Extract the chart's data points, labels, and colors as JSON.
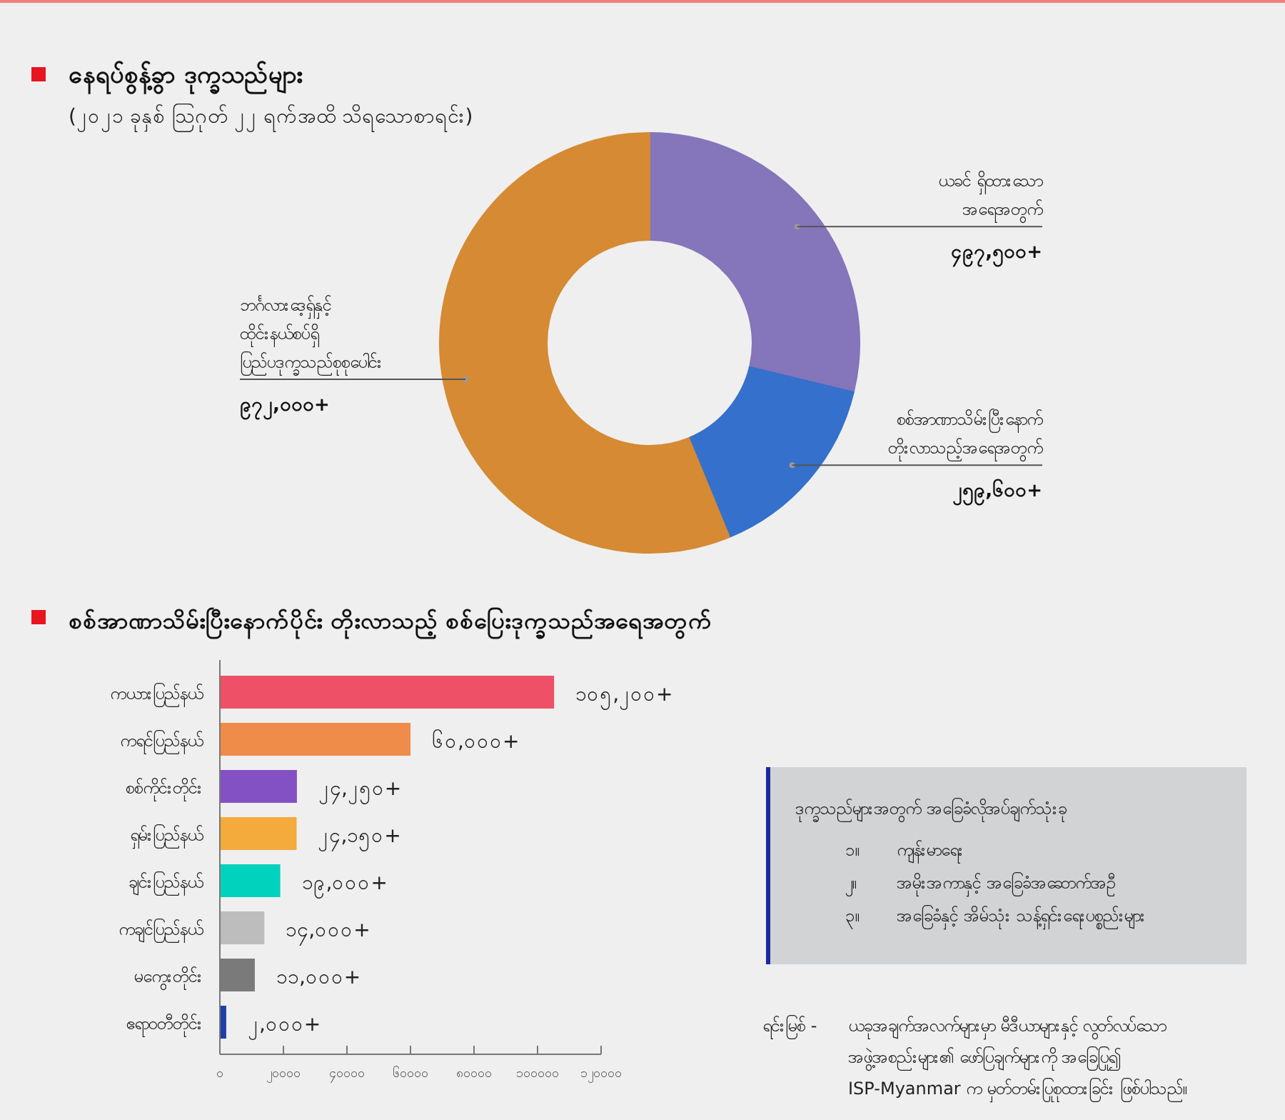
{
  "chart_data": [
    {
      "type": "donut",
      "title": "နေရပ်စွန့်ခွာ ဒုက္ခသည်များ",
      "subtitle": "(၂၀၂၁ ခုနှစ် ဩဂုတ် ၂၂ ရက်အထိ သိရသောစာရင်း)",
      "categories": [
        "ယခင် ရှိထားသော\nအရေအတွက်",
        "စစ်အာဏာသိမ်းပြီးနောက်\nတိုးလာသည့်အရေအတွက်",
        "ဘင်္ဂလားဒေ့ရှ်နှင့်\nထိုင်းနယ်စပ်ရှိ\nပြည်ပဒုက္ခသည်စုစုပေါင်း"
      ],
      "values": [
        497500,
        259600,
        972000
      ],
      "colors": [
        "#8575ba",
        "#3570cc",
        "#d68a33"
      ],
      "value_labels": [
        "၄၉၇,၅၀၀+",
        "၂၅၉,၆၀၀+",
        "၉၇၂,၀၀၀+"
      ]
    },
    {
      "type": "bar",
      "orientation": "horizontal",
      "title": "စစ်အာဏာသိမ်းပြီးနောက်ပိုင်း တိုးလာသည့် စစ်ပြေးဒုက္ခသည်အရေအတွက်",
      "categories": [
        "ကယားပြည်နယ်",
        "ကရင်ပြည်နယ်",
        "စစ်ကိုင်းတိုင်း",
        "ရှမ်းပြည်နယ်",
        "ချင်းပြည်နယ်",
        "ကချင်ပြည်နယ်",
        "မကွေးတိုင်း",
        "ဧရာဝတီတိုင်း"
      ],
      "values": [
        105200,
        60000,
        24250,
        24150,
        19000,
        14000,
        11000,
        2000
      ],
      "colors": [
        "#ee5068",
        "#ef8c4a",
        "#8351c4",
        "#f5aa3c",
        "#00d2bd",
        "#bdbdbd",
        "#7a7a7a",
        "#1f3fa8"
      ],
      "value_labels": [
        "၁၀၅,၂၀၀+",
        "၆၀,၀၀၀+",
        "၂၄,၂၅၀+",
        "၂၄,၁၅၀+",
        "၁၉,၀၀၀+",
        "၁၄,၀၀၀+",
        "၁၁,၀၀၀+",
        "၂,၀၀၀+"
      ],
      "xlim": [
        0,
        120000
      ],
      "xticks": [
        {
          "value": 0,
          "label": "၀"
        },
        {
          "value": 20000,
          "label": "၂၀၀၀၀"
        },
        {
          "value": 40000,
          "label": "၄၀၀၀၀"
        },
        {
          "value": 60000,
          "label": "၆၀၀၀၀"
        },
        {
          "value": 80000,
          "label": "၈၀၀၀၀"
        },
        {
          "value": 100000,
          "label": "၁၀၀၀၀၀"
        },
        {
          "value": 120000,
          "label": "၁၂၀၀၀၀"
        }
      ],
      "annotations": [
        "ဒုက္ခသည်များအတွက် အခြေခံလိုအပ်ချက်သုံးခု",
        "၁။ ကျန်းမာရေး",
        "၂။ အမိုးအကာနှင့် အခြေခံအဆောက်အဦ",
        "၃။ အခြေခံနှင့် အိမ်သုံး သန့်ရှင်းရေးပစ္စည်းများ",
        "ရင်းမြစ် - ယခုအချက်အလက်များမှာ မီဒီယာများနှင့် လွတ်လပ်သော\nအဖွဲ့အစည်းများ၏ ဖော်ပြချက်များကို အခြေပြု၍\nISP-Myanmar က မှတ်တမ်းပြုစုထားခြင်း ဖြစ်ပါသည်။"
      ]
    }
  ]
}
